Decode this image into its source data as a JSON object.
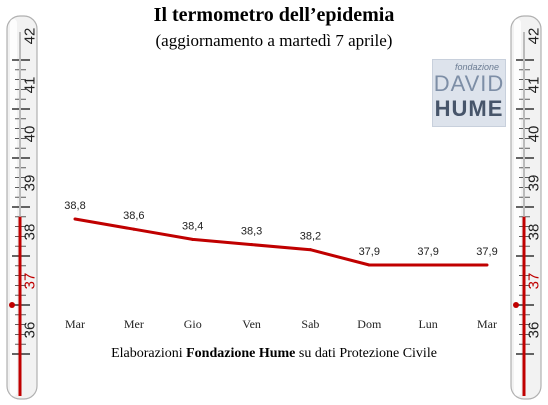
{
  "header": {
    "title": "Il termometro dell’epidemia",
    "subtitle": "(aggiornamento a martedì 7 aprile)"
  },
  "logo": {
    "small": "fondazione",
    "line1": "DAVID",
    "line2": "HUME"
  },
  "thermometer": {
    "scale_labels": [
      "42",
      "41",
      "40",
      "39",
      "38",
      "37",
      "36"
    ],
    "highlight_label": "37",
    "reading": 38.8,
    "fill_color": "#c00000",
    "body_color": "#f2f2f2"
  },
  "footer": {
    "prefix": "Elaborazioni ",
    "bold": "Fondazione Hume",
    "suffix": " su dati Protezione Civile"
  },
  "chart_data": {
    "type": "line",
    "categories": [
      "Mar",
      "Mer",
      "Gio",
      "Ven",
      "Sab",
      "Dom",
      "Lun",
      "Mar"
    ],
    "values": [
      38.8,
      38.6,
      38.4,
      38.3,
      38.2,
      37.9,
      37.9,
      37.9
    ],
    "value_labels": [
      "38,8",
      "38,6",
      "38,4",
      "38,3",
      "38,2",
      "37,9",
      "37,9",
      "37,9"
    ],
    "title": "Il termometro dell’epidemia",
    "subtitle": "(aggiornamento a martedì 7 aprile)",
    "line_color": "#c00000",
    "grid": false,
    "ylim": [
      37.5,
      39.2
    ]
  }
}
